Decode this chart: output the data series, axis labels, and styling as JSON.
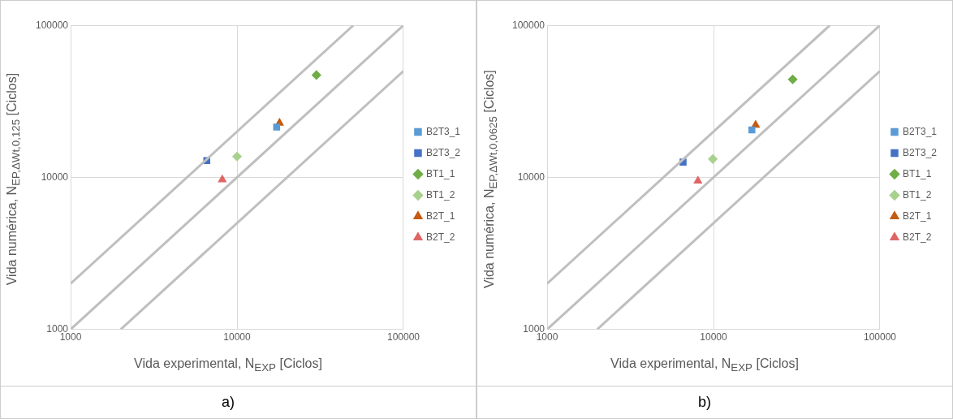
{
  "chart_data": [
    {
      "type": "scatter",
      "xlabel": "Vida experimental, N$_{EXP}$ [Ciclos]",
      "ylabel": "Vida numérica, N$_{EP,ΔWt,0,125}$ [Ciclos]",
      "annotations": [
        "a)"
      ],
      "log": "xy",
      "xlim": [
        1000,
        100000
      ],
      "ylim": [
        1000,
        100000
      ],
      "xticks": [
        1000,
        10000,
        100000
      ],
      "yticks": [
        1000,
        10000,
        100000
      ],
      "grid": true,
      "legend": "right",
      "series": [
        {
          "type": "line",
          "color": "#bfbfbf",
          "x": [
            1000,
            50000
          ],
          "values": [
            2000,
            100000
          ],
          "marker": "none"
        },
        {
          "type": "line",
          "color": "#bfbfbf",
          "x": [
            1000,
            100000
          ],
          "values": [
            1000,
            100000
          ],
          "marker": "none"
        },
        {
          "type": "line",
          "color": "#bfbfbf",
          "x": [
            2000,
            100000
          ],
          "values": [
            1000,
            50000
          ],
          "marker": "none"
        },
        {
          "name": "B2T3_1",
          "color": "#5b9bd5",
          "marker": "square",
          "x": [
            17300
          ],
          "values": [
            21400
          ]
        },
        {
          "name": "B2T3_2",
          "color": "#4472c4",
          "marker": "square",
          "x": [
            6580
          ],
          "values": [
            12900
          ]
        },
        {
          "name": "BT1_1",
          "color": "#70ad47",
          "marker": "diamond",
          "x": [
            30000
          ],
          "values": [
            47100
          ]
        },
        {
          "name": "BT1_2",
          "color": "#a9d18e",
          "marker": "diamond",
          "x": [
            10000
          ],
          "values": [
            13700
          ]
        },
        {
          "name": "B2T_1",
          "color": "#c55a11",
          "marker": "triangle",
          "x": [
            18000
          ],
          "values": [
            22800
          ]
        },
        {
          "name": "B2T_2",
          "color": "#e06666",
          "marker": "triangle",
          "x": [
            8150
          ],
          "values": [
            9660
          ]
        }
      ]
    },
    {
      "type": "scatter",
      "xlabel": "Vida experimental, N$_{EXP}$ [Ciclos]",
      "ylabel": "Vida numérica, N$_{EP,ΔWt,0,0625}$ [Ciclos]",
      "annotations": [
        "b)"
      ],
      "log": "xy",
      "xlim": [
        1000,
        100000
      ],
      "ylim": [
        1000,
        100000
      ],
      "xticks": [
        1000,
        10000,
        100000
      ],
      "yticks": [
        1000,
        10000,
        100000
      ],
      "grid": true,
      "legend": "right",
      "series": [
        {
          "type": "line",
          "color": "#bfbfbf",
          "x": [
            1000,
            50000
          ],
          "values": [
            2000,
            100000
          ],
          "marker": "none"
        },
        {
          "type": "line",
          "color": "#bfbfbf",
          "x": [
            1000,
            100000
          ],
          "values": [
            1000,
            100000
          ],
          "marker": "none"
        },
        {
          "type": "line",
          "color": "#bfbfbf",
          "x": [
            2000,
            100000
          ],
          "values": [
            1000,
            50000
          ],
          "marker": "none"
        },
        {
          "name": "B2T3_1",
          "color": "#5b9bd5",
          "marker": "square",
          "x": [
            17000
          ],
          "values": [
            20500
          ]
        },
        {
          "name": "B2T3_2",
          "color": "#4472c4",
          "marker": "square",
          "x": [
            6560
          ],
          "values": [
            12600
          ]
        },
        {
          "name": "BT1_1",
          "color": "#70ad47",
          "marker": "diamond",
          "x": [
            29900
          ],
          "values": [
            44100
          ]
        },
        {
          "name": "BT1_2",
          "color": "#a9d18e",
          "marker": "diamond",
          "x": [
            9900
          ],
          "values": [
            13200
          ]
        },
        {
          "name": "B2T_1",
          "color": "#c55a11",
          "marker": "triangle",
          "x": [
            17900
          ],
          "values": [
            22100
          ]
        },
        {
          "name": "B2T_2",
          "color": "#e06666",
          "marker": "triangle",
          "x": [
            8060
          ],
          "values": [
            9470
          ]
        }
      ]
    }
  ]
}
